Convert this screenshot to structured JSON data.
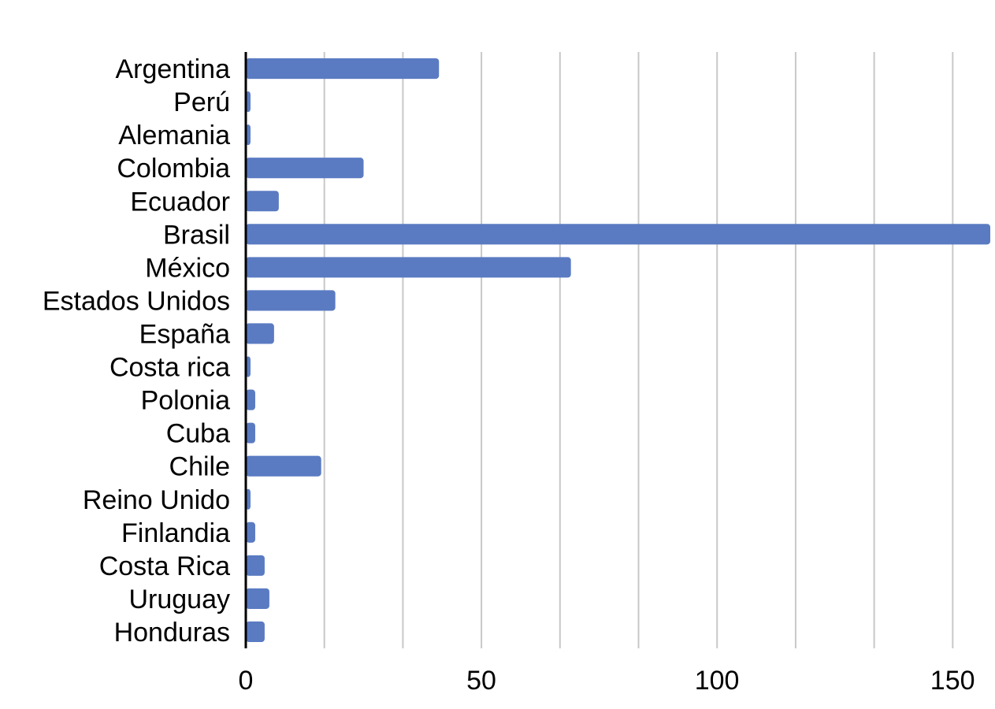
{
  "chart_data": {
    "type": "bar",
    "orientation": "horizontal",
    "categories": [
      "Argentina",
      "Perú",
      "Alemania",
      "Colombia",
      "Ecuador",
      "Brasil",
      "México",
      "Estados Unidos",
      "España",
      "Costa rica",
      "Polonia",
      "Cuba",
      "Chile",
      "Reino Unido",
      "Finlandia",
      "Costa Rica",
      "Uruguay",
      "Honduras"
    ],
    "values": [
      41,
      1,
      1,
      25,
      7,
      158,
      69,
      19,
      6,
      1,
      2,
      2,
      16,
      1,
      2,
      4,
      5,
      4
    ],
    "title": "",
    "xlabel": "",
    "ylabel": "",
    "xlim": [
      0,
      158
    ],
    "x_ticks": [
      0,
      50,
      100,
      150
    ],
    "minor_grid_step": 16.67,
    "grid": true,
    "legend": "none",
    "bar_color": "#5a7bc2",
    "grid_color": "#c8c8c8",
    "axis_color": "#000000"
  }
}
